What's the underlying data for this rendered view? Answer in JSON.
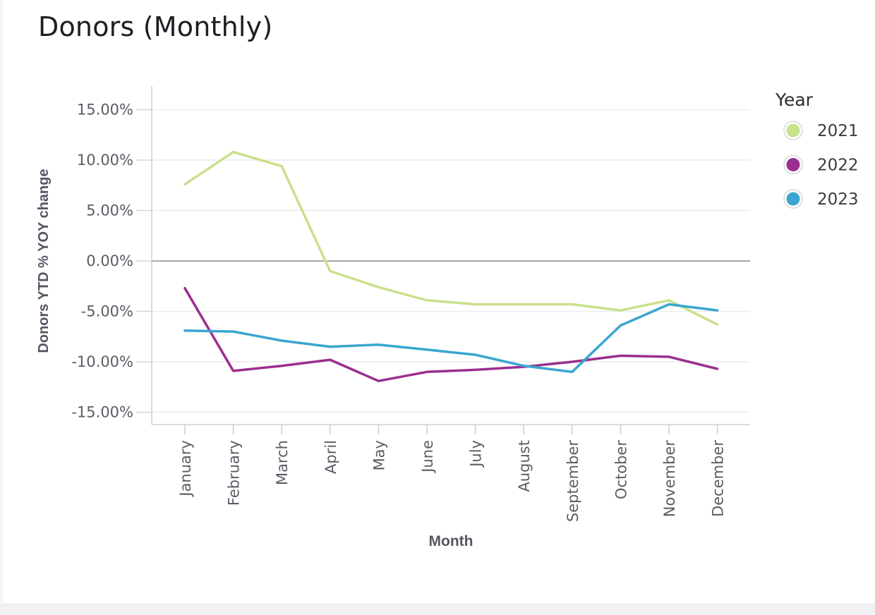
{
  "header": {
    "title": "Donors (Monthly)"
  },
  "chart_data": {
    "type": "line",
    "title": "Donors (Monthly)",
    "xlabel": "Month",
    "ylabel": "Donors YTD % YOY change",
    "categories": [
      "January",
      "February",
      "March",
      "April",
      "May",
      "June",
      "July",
      "August",
      "September",
      "October",
      "November",
      "December"
    ],
    "y_ticks": [
      15,
      10,
      5,
      0,
      -5,
      -10,
      -15
    ],
    "y_tick_labels": [
      "15.00%",
      "10.00%",
      "5.00%",
      "0.00%",
      "-5.00%",
      "-10.00%",
      "-15.00%"
    ],
    "ylim": [
      -16.3,
      17.2
    ],
    "grid": true,
    "legend_title": "Year",
    "legend_position": "right",
    "series": [
      {
        "name": "2021",
        "color": "#c9e08c",
        "values": [
          7.6,
          10.8,
          9.4,
          -1.0,
          -2.6,
          -3.9,
          -4.3,
          -4.3,
          -4.3,
          -4.9,
          -3.9,
          -6.3
        ]
      },
      {
        "name": "2022",
        "color": "#9b2f8e",
        "values": [
          -2.7,
          -10.9,
          -10.4,
          -9.8,
          -11.9,
          -11.0,
          -10.8,
          -10.5,
          -10.0,
          -9.4,
          -9.5,
          -10.7
        ]
      },
      {
        "name": "2023",
        "color": "#3aa6d0",
        "values": [
          -6.9,
          -7.0,
          -7.9,
          -8.5,
          -8.3,
          -8.8,
          -9.3,
          -10.4,
          -11.0,
          -6.4,
          -4.3,
          -4.9
        ]
      }
    ]
  }
}
